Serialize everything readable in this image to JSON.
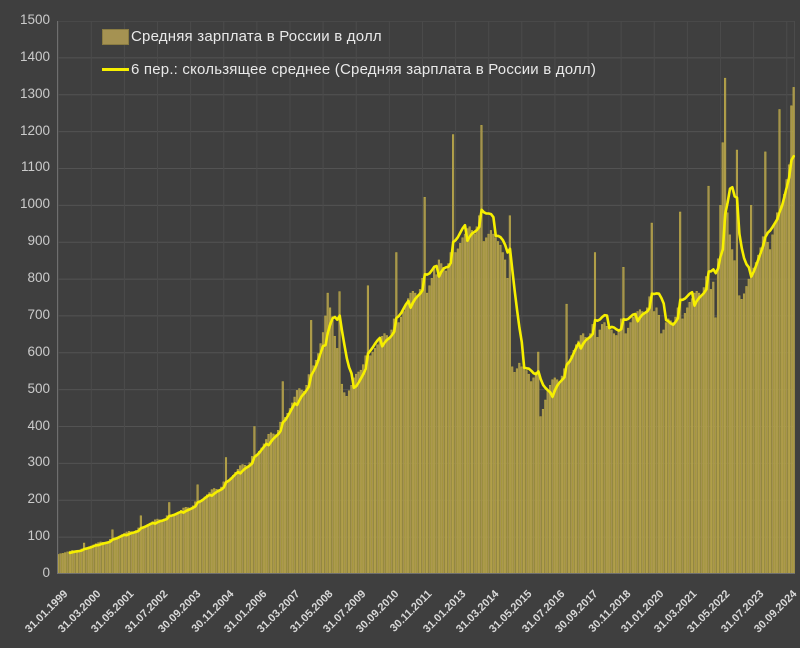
{
  "chart_data": {
    "type": "bar",
    "title": "",
    "legend": [
      {
        "label": "Средняя зарплата в России в долл",
        "type": "bar"
      },
      {
        "label": "6 пер.: скользящее среднее (Средняя зарплата в России в долл)",
        "type": "line"
      }
    ],
    "moving_average_window": 6,
    "ylim": [
      0,
      1500
    ],
    "y_ticks": [
      0,
      100,
      200,
      300,
      400,
      500,
      600,
      700,
      800,
      900,
      1000,
      1100,
      1200,
      1300,
      1400,
      1500
    ],
    "x_ticks": [
      "31.01.1999",
      "31.03.2000",
      "31.05.2001",
      "31.07.2002",
      "30.09.2003",
      "30.11.2004",
      "31.01.2006",
      "31.03.2007",
      "31.05.2008",
      "31.07.2009",
      "30.09.2010",
      "30.11.2011",
      "31.01.2013",
      "31.03.2014",
      "31.05.2015",
      "31.07.2016",
      "30.09.2017",
      "30.11.2018",
      "31.01.2020",
      "31.03.2021",
      "31.05.2022",
      "31.07.2023",
      "30.09.2024"
    ],
    "x_tick_interval": 14,
    "x_start": "31.01.1999",
    "x_end": "31.12.2024",
    "grid": true,
    "values": [
      53,
      55,
      56,
      58,
      60,
      62,
      64,
      63,
      62,
      64,
      68,
      84,
      72,
      74,
      76,
      79,
      82,
      85,
      87,
      86,
      85,
      88,
      94,
      120,
      98,
      100,
      103,
      107,
      110,
      114,
      116,
      115,
      114,
      118,
      125,
      158,
      128,
      131,
      134,
      138,
      142,
      147,
      149,
      147,
      146,
      150,
      158,
      194,
      155,
      159,
      163,
      168,
      173,
      179,
      181,
      180,
      179,
      185,
      196,
      242,
      198,
      203,
      209,
      215,
      221,
      229,
      232,
      230,
      229,
      236,
      250,
      316,
      255,
      261,
      268,
      276,
      284,
      294,
      297,
      295,
      293,
      302,
      319,
      400,
      325,
      333,
      342,
      353,
      365,
      379,
      383,
      380,
      378,
      390,
      412,
      522,
      425,
      436,
      449,
      464,
      480,
      498,
      503,
      499,
      496,
      512,
      541,
      688,
      565,
      580,
      598,
      625,
      655,
      700,
      762,
      722,
      698,
      645,
      612,
      766,
      515,
      492,
      482,
      497,
      512,
      532,
      542,
      548,
      553,
      568,
      592,
      782,
      592,
      602,
      612,
      622,
      632,
      645,
      652,
      647,
      642,
      662,
      692,
      872,
      682,
      697,
      712,
      732,
      747,
      762,
      767,
      762,
      752,
      772,
      802,
      1022,
      762,
      782,
      802,
      832,
      812,
      852,
      842,
      832,
      822,
      842,
      872,
      1192,
      872,
      882,
      897,
      912,
      922,
      937,
      942,
      932,
      922,
      942,
      972,
      1217,
      902,
      912,
      922,
      932,
      922,
      912,
      902,
      892,
      872,
      852,
      802,
      972,
      562,
      547,
      557,
      572,
      562,
      557,
      552,
      542,
      522,
      532,
      547,
      602,
      427,
      447,
      472,
      497,
      512,
      527,
      532,
      527,
      522,
      537,
      557,
      732,
      572,
      592,
      607,
      622,
      632,
      647,
      652,
      642,
      637,
      652,
      677,
      872,
      642,
      662,
      677,
      682,
      672,
      667,
      662,
      652,
      647,
      662,
      692,
      832,
      652,
      667,
      682,
      697,
      702,
      712,
      717,
      712,
      707,
      722,
      752,
      952,
      712,
      722,
      702,
      652,
      662,
      682,
      692,
      687,
      682,
      697,
      722,
      982,
      692,
      707,
      722,
      737,
      747,
      762,
      767,
      762,
      757,
      777,
      807,
      1052,
      772,
      792,
      695,
      855,
      1000,
      1170,
      1345,
      980,
      920,
      880,
      850,
      1150,
      755,
      745,
      760,
      780,
      800,
      1000,
      830,
      845,
      865,
      885,
      915,
      1145,
      900,
      880,
      920,
      950,
      980,
      1260,
      1000,
      1030,
      1070,
      1110,
      1270,
      1320
    ],
    "colors": {
      "background": "#3f3f3f",
      "gridline": "#535353",
      "gridline_v": "#4b4b4b",
      "axis_line": "#6f6f6f",
      "bar_fill": "#a59252",
      "bar_edge": "#c7b63e",
      "ma_line": "#f6ef00",
      "axis_text": "#cbcbcb",
      "legend_text": "#e9e9e9"
    }
  }
}
